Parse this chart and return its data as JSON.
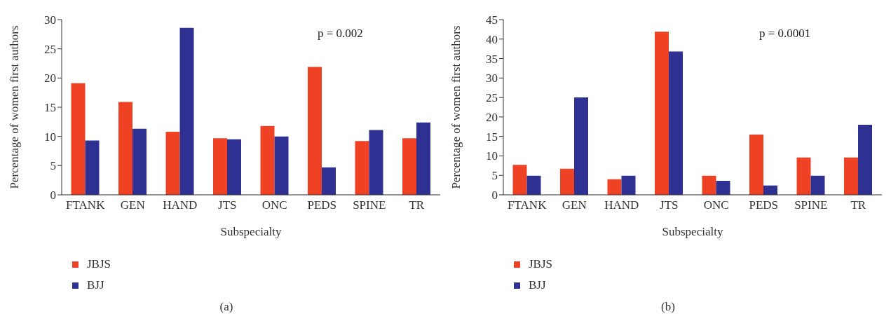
{
  "chart_data": [
    {
      "type": "bar",
      "xlabel": "Subspecialty",
      "ylabel": "Percentage of women first authors",
      "categories": [
        "FTANK",
        "GEN",
        "HAND",
        "JTS",
        "ONC",
        "PEDS",
        "SPINE",
        "TR"
      ],
      "series": [
        {
          "name": "JBJS",
          "color": "#ef4123",
          "values": [
            19.1,
            15.9,
            10.8,
            9.7,
            11.8,
            21.9,
            9.2,
            9.7
          ]
        },
        {
          "name": "BJJ",
          "color": "#2e3192",
          "values": [
            9.3,
            11.3,
            28.6,
            9.5,
            10.0,
            4.7,
            11.1,
            12.4
          ]
        }
      ],
      "ylim": [
        0,
        30
      ],
      "yticks": [
        0,
        5,
        10,
        15,
        20,
        25,
        30
      ],
      "grid": false,
      "legend": "bottom left",
      "annotations": [
        "p = 0.002",
        "(a)"
      ]
    },
    {
      "type": "bar",
      "xlabel": "Subspecialty",
      "ylabel": "Percentage of women first authors",
      "categories": [
        "FTANK",
        "GEN",
        "HAND",
        "JTS",
        "ONC",
        "PEDS",
        "SPINE",
        "TR"
      ],
      "series": [
        {
          "name": "JBJS",
          "color": "#ef4123",
          "values": [
            7.7,
            6.7,
            4.0,
            41.9,
            4.9,
            15.5,
            9.6,
            9.6
          ]
        },
        {
          "name": "BJJ",
          "color": "#2e3192",
          "values": [
            4.9,
            25.0,
            4.9,
            36.8,
            3.6,
            2.4,
            4.9,
            18.0
          ]
        }
      ],
      "ylim": [
        0,
        45
      ],
      "yticks": [
        0,
        5,
        10,
        15,
        20,
        25,
        30,
        35,
        40,
        45
      ],
      "grid": false,
      "legend": "bottom left",
      "annotations": [
        "p = 0.0001",
        "(b)"
      ]
    }
  ]
}
